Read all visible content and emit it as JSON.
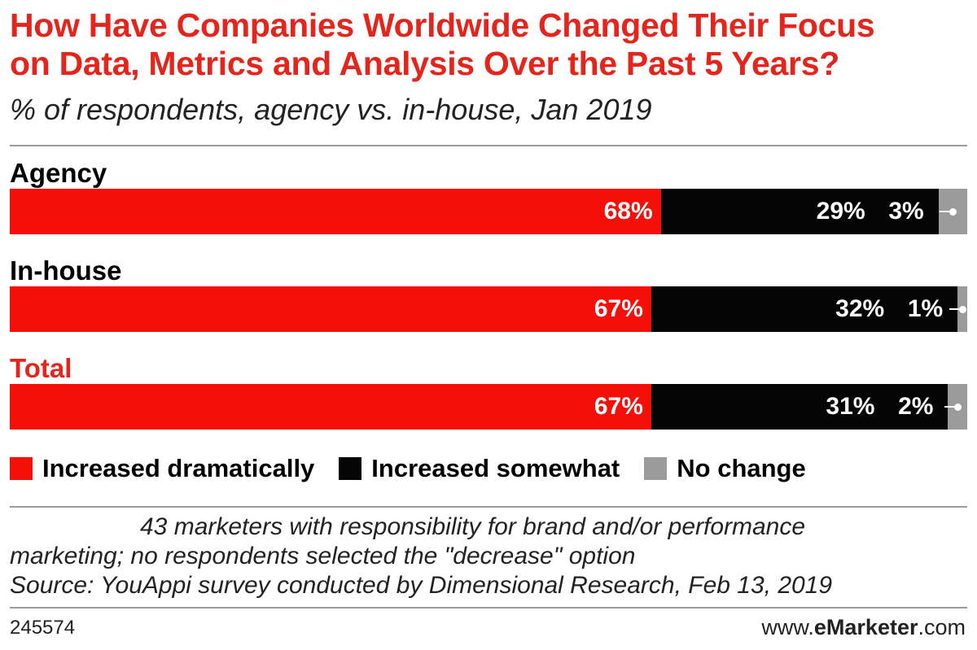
{
  "header": {
    "title_line1": "How Have Companies Worldwide Changed Their Focus",
    "title_line2": "on Data, Metrics and Analysis Over the Past 5 Years?",
    "subtitle": "% of respondents, agency vs. in-house, Jan 2019"
  },
  "colors": {
    "increased_dramatically": "#f40f09",
    "increased_somewhat": "#050505",
    "no_change": "#9b9b9b",
    "title": "#e5241c",
    "total_label": "#e5241c"
  },
  "chart_data": {
    "type": "bar",
    "orientation": "horizontal-stacked-100",
    "categories": [
      "Agency",
      "In-house",
      "Total"
    ],
    "series": [
      {
        "name": "Increased dramatically",
        "values": [
          68,
          67,
          67
        ]
      },
      {
        "name": "Increased somewhat",
        "values": [
          29,
          32,
          31
        ]
      },
      {
        "name": "No change",
        "values": [
          3,
          1,
          2
        ]
      }
    ],
    "value_labels": [
      [
        "68%",
        "29%",
        "3%"
      ],
      [
        "67%",
        "32%",
        "1%"
      ],
      [
        "67%",
        "31%",
        "2%"
      ]
    ],
    "legend_position": "bottom"
  },
  "legend": [
    "Increased dramatically",
    "Increased somewhat",
    "No change"
  ],
  "footer": {
    "note_line1": "43 marketers with responsibility for brand and/or performance",
    "note_line2": "marketing; no respondents selected the \"decrease\" option",
    "source": "Source: YouAppi survey conducted by Dimensional Research, Feb 13, 2019",
    "chart_id": "245574",
    "brand_prefix": "www.",
    "brand_name": "eMarketer",
    "brand_suffix": ".com"
  }
}
